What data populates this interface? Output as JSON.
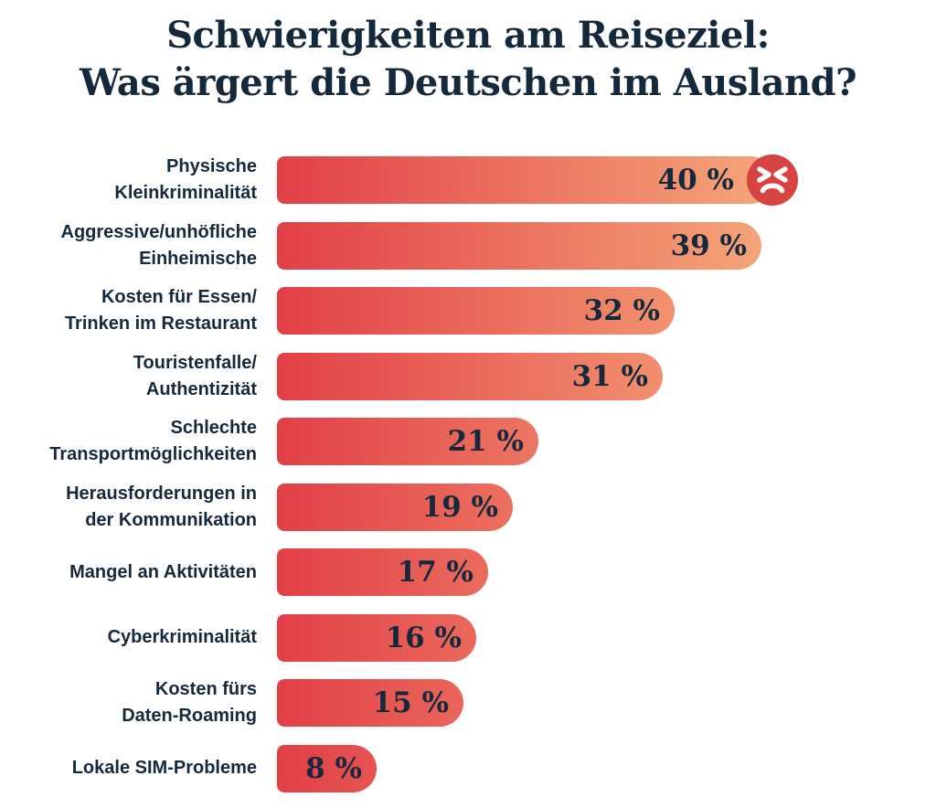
{
  "title": {
    "line1": "Schwierigkeiten am Reiseziel:",
    "line2": "Was ärgert die Deutschen im Ausland?"
  },
  "chart_data": {
    "type": "bar",
    "orientation": "horizontal",
    "title": "Schwierigkeiten am Reiseziel: Was ärgert die Deutschen im Ausland?",
    "unit": "%",
    "xlim": [
      0,
      40
    ],
    "grid": false,
    "legend": false,
    "categories": [
      "Physische Kleinkriminalität",
      "Aggressive/unhöfliche Einheimische",
      "Kosten für Essen/Trinken im Restaurant",
      "Touristenfalle/Authentizität",
      "Schlechte Transportmöglichkeiten",
      "Herausforderungen in der Kommunikation",
      "Mangel an Aktivitäten",
      "Cyberkriminalität",
      "Kosten fürs Daten-Roaming",
      "Lokale SIM-Probleme"
    ],
    "category_lines": [
      [
        "Physische",
        "Kleinkriminalität"
      ],
      [
        "Aggressive/unhöfliche",
        "Einheimische"
      ],
      [
        "Kosten für Essen/",
        "Trinken im Restaurant"
      ],
      [
        "Touristenfalle/",
        "Authentizität"
      ],
      [
        "Schlechte",
        "Transportmöglichkeiten"
      ],
      [
        "Herausforderungen in",
        "der Kommunikation"
      ],
      [
        "Mangel an Aktivitäten"
      ],
      [
        "Cyberkriminalität"
      ],
      [
        "Kosten fürs",
        "Daten-Roaming"
      ],
      [
        "Lokale SIM-Probleme"
      ]
    ],
    "values": [
      40,
      39,
      32,
      31,
      21,
      19,
      17,
      16,
      15,
      8
    ],
    "value_labels": [
      "40 %",
      "39 %",
      "32 %",
      "31 %",
      "21 %",
      "19 %",
      "17 %",
      "16 %",
      "15 %",
      "8 %"
    ],
    "annotation": {
      "bar_index": 0,
      "icon": "angry-face-icon"
    },
    "colors": {
      "bar_gradient_start": "#e23f47",
      "bar_gradient_end": "#f6aa7b",
      "emoji_circle": "#d84341",
      "emoji_face": "#ffffff",
      "text": "#15293d",
      "background": "#ffffff"
    }
  }
}
